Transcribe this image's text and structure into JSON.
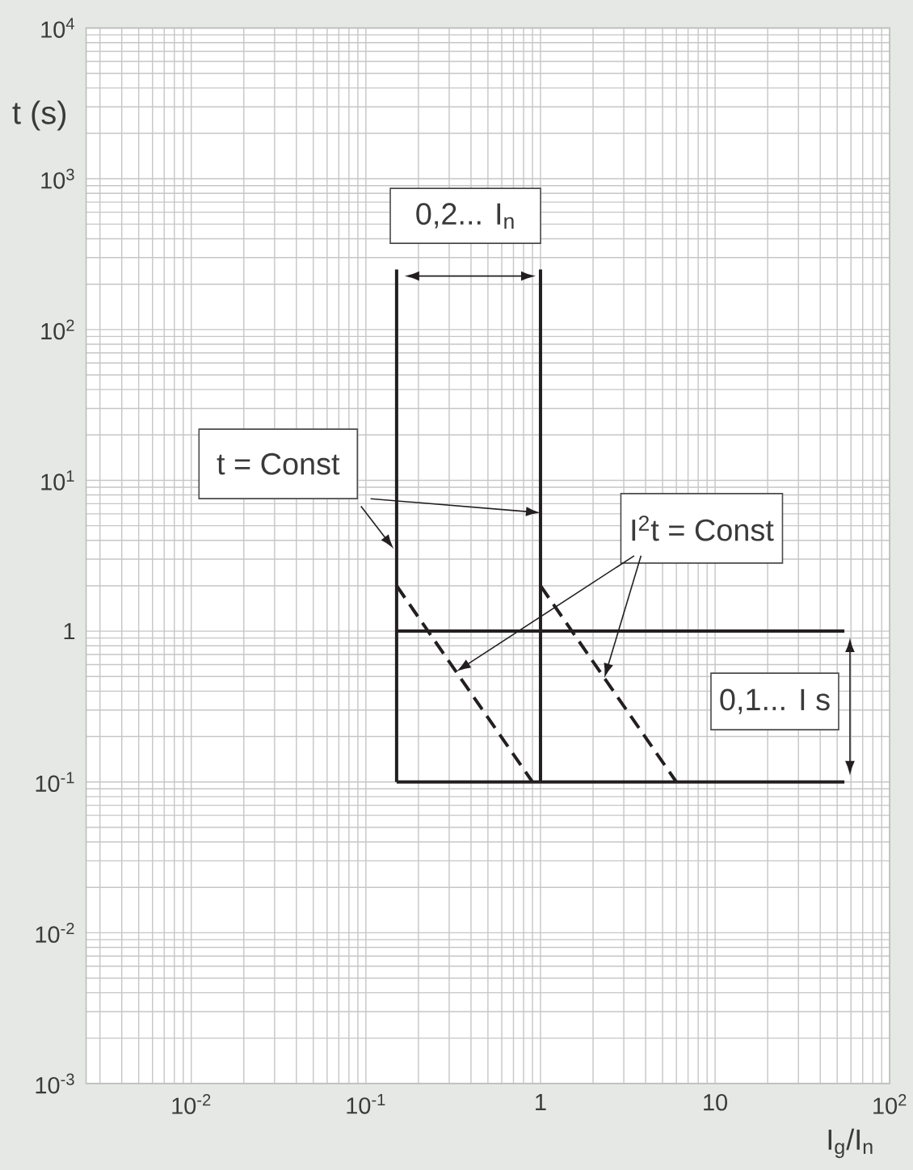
{
  "chart_data": {
    "type": "line",
    "xlabel": "I$_{g}$/I$_{n}$",
    "ylabel": "t (s)",
    "xlim": [
      0.0025,
      100
    ],
    "ylim": [
      0.001,
      10000
    ],
    "xticks": [
      {
        "value": 0.01,
        "label": "10$^{-2}$"
      },
      {
        "value": 0.1,
        "label": "10$^{-1}$"
      },
      1,
      10,
      {
        "value": 100,
        "label": "10$^{2}$"
      }
    ],
    "yticks": [
      {
        "value": 0.001,
        "label": "10$^{-3}$"
      },
      {
        "value": 0.01,
        "label": "10$^{-2}$"
      },
      {
        "value": 0.1,
        "label": "10$^{-1}$"
      },
      1,
      {
        "value": 10,
        "label": "10$^{1}$"
      },
      {
        "value": 100,
        "label": "10$^{2}$"
      },
      {
        "value": 1000,
        "label": "10$^{3}$"
      },
      {
        "value": 10000,
        "label": "10$^{4}$"
      }
    ],
    "log": "xy",
    "grid": true,
    "series": [
      {
        "x": [
          0.15,
          0.15
        ],
        "values": [
          250,
          0.1
        ],
        "color": "#231f20",
        "line_style": "solid"
      },
      {
        "x": [
          1,
          1
        ],
        "values": [
          250,
          0.1
        ],
        "color": "#231f20",
        "line_style": "solid"
      },
      {
        "x": [
          0.15,
          55
        ],
        "values": [
          1,
          1
        ],
        "color": "#231f20",
        "line_style": "solid"
      },
      {
        "x": [
          0.15,
          55
        ],
        "values": [
          0.1,
          0.1
        ],
        "color": "#231f20",
        "line_style": "solid"
      },
      {
        "x": [
          0.15,
          0.9
        ],
        "values": [
          2,
          0.1
        ],
        "color": "#231f20",
        "line_style": "dashed"
      },
      {
        "x": [
          1,
          6
        ],
        "values": [
          2,
          0.1
        ],
        "color": "#231f20",
        "line_style": "dashed"
      }
    ],
    "annotations": [
      "0,2... I$_{n}$",
      {
        "text": "t = Const",
        "x": 1,
        "y": 6.1
      },
      {
        "text": "I$^{2}$t = Const",
        "x": 0.33,
        "y": 0.54
      },
      "0,1... I s"
    ]
  }
}
